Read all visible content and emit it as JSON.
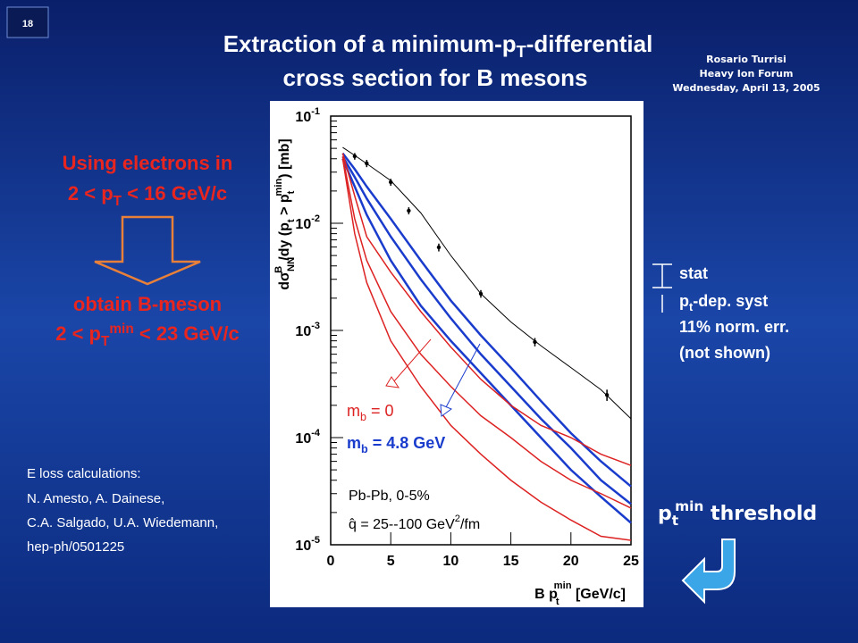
{
  "slide_number": "18",
  "title": {
    "line1": [
      "Extraction of a minimum-p",
      "T",
      "-differential"
    ],
    "line2": "cross section for B mesons"
  },
  "author": [
    "Rosario Turrisi",
    "Heavy Ion Forum",
    "Wednesday, April 13, 2005"
  ],
  "left": {
    "line1": "Using electrons in",
    "line2": [
      "2 < p",
      "T",
      " < 16 GeV/c"
    ],
    "line3": "obtain B-meson",
    "line4": [
      "2 < p",
      "T",
      "min",
      " < 23 GeV/c"
    ]
  },
  "references": [
    "E loss calculations:",
    "N. Amesto, A. Dainese,",
    "C.A. Salgado, U.A. Wiedemann,",
    "hep-ph/0501225"
  ],
  "legend_right": {
    "stat": "stat",
    "syst": [
      "p",
      "t",
      "-dep. syst"
    ],
    "norm": "11% norm. err.",
    "note": "(not shown)"
  },
  "threshold": [
    "p",
    "t",
    "min",
    " threshold"
  ],
  "chart_data": {
    "type": "line",
    "log_y": true,
    "xlim": [
      0,
      25
    ],
    "ylim": [
      1e-05,
      0.1
    ],
    "xticks": [
      0,
      5,
      10,
      15,
      20,
      25
    ],
    "yticks": [
      {
        "value": 1e-05,
        "label": "10",
        "exponent": "-5"
      },
      {
        "value": 0.0001,
        "label": "10",
        "exponent": "-4"
      },
      {
        "value": 0.001,
        "label": "10",
        "exponent": "-3"
      },
      {
        "value": 0.01,
        "label": "10",
        "exponent": "-2"
      },
      {
        "value": 0.1,
        "label": "10",
        "exponent": "-1"
      }
    ],
    "xlabel": [
      "B p",
      "t",
      "min",
      "  [GeV/c]"
    ],
    "ylabel": [
      "dσ",
      "NN",
      "B",
      "/dy (p",
      "t",
      " > p",
      "t",
      "min",
      ") [mb]"
    ],
    "annotations": {
      "mb0": [
        "m",
        "b",
        " = 0"
      ],
      "mb48": [
        "m",
        "b",
        " = 4.8 GeV"
      ],
      "system": "Pb-Pb, 0-5%",
      "qhat": [
        "q̂ = 25--100 GeV",
        "2",
        "/fm"
      ]
    },
    "points": {
      "color": "#000000",
      "x": [
        2,
        3,
        5,
        6.5,
        9,
        12.5,
        17,
        23
      ],
      "values": [
        0.0422,
        0.0362,
        0.0242,
        0.0131,
        0.00596,
        0.0022,
        0.00078,
        0.00025
      ],
      "errors": [
        0.003,
        0.0028,
        0.0018,
        0.001,
        0.0005,
        0.00018,
        7e-05,
        3e-05
      ]
    },
    "x": [
      1,
      2,
      3,
      5,
      7.5,
      10,
      12.5,
      15,
      17.5,
      20,
      22.5,
      25
    ],
    "series": [
      {
        "color": "#000000",
        "width": 1,
        "values": [
          0.051,
          0.043,
          0.036,
          0.025,
          0.0125,
          0.005,
          0.0022,
          0.0012,
          0.00072,
          0.00045,
          0.00028,
          0.00015
        ]
      },
      {
        "color": "#1a3ccc",
        "width": 2.5,
        "values": [
          0.045,
          0.032,
          0.022,
          0.011,
          0.0045,
          0.0019,
          0.0009,
          0.00045,
          0.00022,
          0.00011,
          6e-05,
          3.5e-05
        ]
      },
      {
        "color": "#1a3ccc",
        "width": 2.5,
        "values": [
          0.042,
          0.027,
          0.017,
          0.0075,
          0.003,
          0.0013,
          0.0006,
          0.0003,
          0.00015,
          8e-05,
          4e-05,
          2.4e-05
        ]
      },
      {
        "color": "#1a3ccc",
        "width": 2.5,
        "values": [
          0.04,
          0.022,
          0.012,
          0.0045,
          0.0017,
          0.0008,
          0.0004,
          0.0002,
          0.0001,
          5e-05,
          2.8e-05,
          1.6e-05
        ]
      },
      {
        "color": "#dd2222",
        "width": 1.5,
        "values": [
          0.045,
          0.018,
          0.0075,
          0.0035,
          0.0015,
          0.0007,
          0.00035,
          0.0002,
          0.00013,
          0.0001,
          7e-05,
          5.5e-05
        ]
      },
      {
        "color": "#dd2222",
        "width": 1.5,
        "values": [
          0.042,
          0.011,
          0.0045,
          0.0015,
          0.0006,
          0.0003,
          0.00016,
          0.0001,
          6e-05,
          4e-05,
          3e-05,
          2.2e-05
        ]
      },
      {
        "color": "#dd2222",
        "width": 1.5,
        "values": [
          0.04,
          0.008,
          0.0028,
          0.0008,
          0.0003,
          0.00013,
          7e-05,
          4e-05,
          2.5e-05,
          1.7e-05,
          1.2e-05,
          1.1e-05
        ]
      }
    ]
  }
}
